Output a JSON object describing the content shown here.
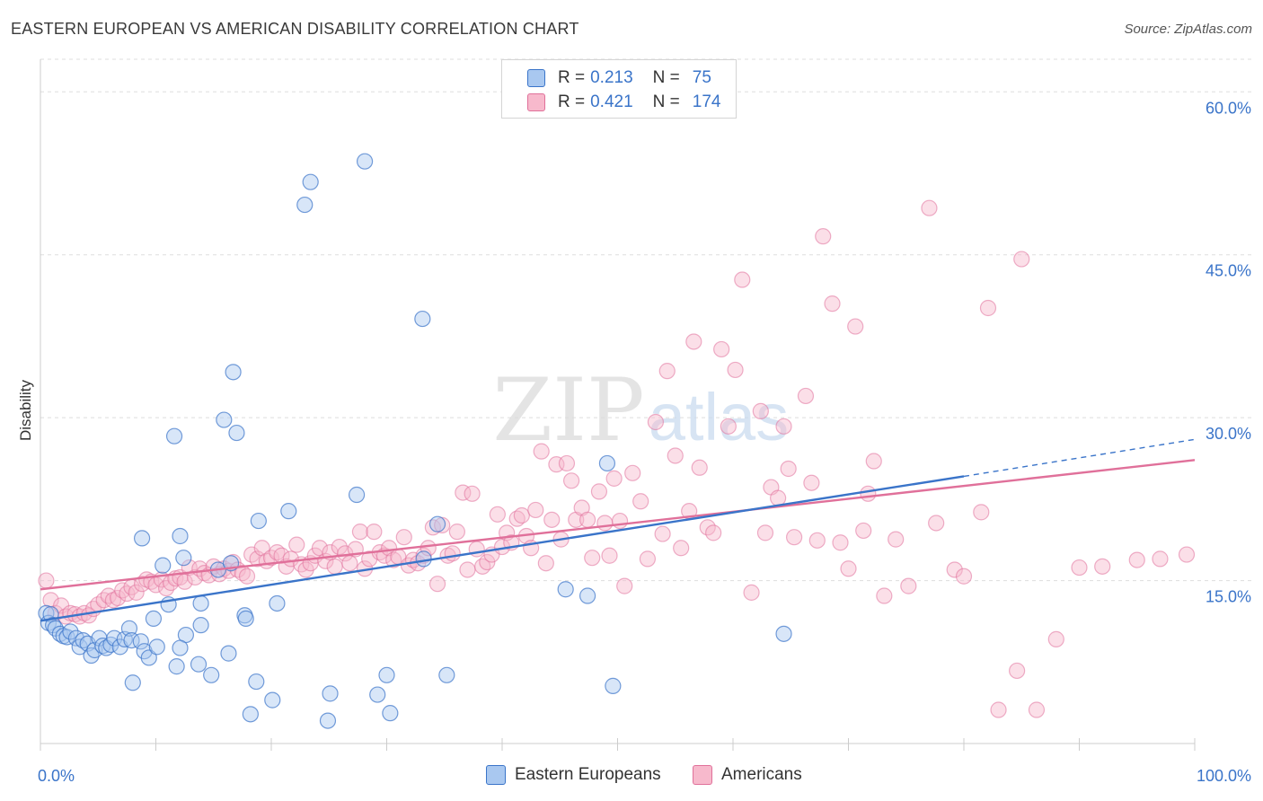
{
  "title": "EASTERN EUROPEAN VS AMERICAN DISABILITY CORRELATION CHART",
  "source": "Source: ZipAtlas.com",
  "watermark": {
    "zip": "ZIP",
    "atlas": "atlas"
  },
  "legend": {
    "r_label": "R =",
    "n_label": "N =",
    "rows": [
      {
        "r": "0.213",
        "n": "75"
      },
      {
        "r": "0.421",
        "n": "174"
      }
    ]
  },
  "bottom_legend": [
    "Eastern Europeans",
    "Americans"
  ],
  "colors": {
    "blue": "#3a74c9",
    "blue_fill": "#a9c8f0",
    "pink": "#e0709a",
    "pink_fill": "#f7b9cc",
    "grid": "#dddddd",
    "axis_label": "#3a74c9"
  },
  "chart_data": {
    "type": "scatter",
    "title": "EASTERN EUROPEAN VS AMERICAN DISABILITY CORRELATION CHART",
    "xlabel": "",
    "ylabel": "Disability",
    "xlim": [
      0,
      100
    ],
    "ylim": [
      0,
      63
    ],
    "x_tick_labels": [
      "0.0%",
      "100.0%"
    ],
    "y_ticks": [
      15,
      30,
      45,
      60
    ],
    "y_tick_labels": [
      "15.0%",
      "30.0%",
      "45.0%",
      "60.0%"
    ],
    "grid": "horizontal dashed",
    "legend_position": "top-center",
    "series": [
      {
        "name": "Eastern Europeans",
        "r": 0.213,
        "n": 75,
        "trend": {
          "x0": 0,
          "y0": 11.3,
          "x1": 80,
          "y1": 24.6,
          "dashed_to_x": 100,
          "dashed_to_y": 28.0
        },
        "points": [
          [
            0.5,
            12
          ],
          [
            0.7,
            11.1
          ],
          [
            0.9,
            11.9
          ],
          [
            1.1,
            10.9
          ],
          [
            1.3,
            10.6
          ],
          [
            1.7,
            10.1
          ],
          [
            2.0,
            9.9
          ],
          [
            2.3,
            9.8
          ],
          [
            2.6,
            10.3
          ],
          [
            3.1,
            9.7
          ],
          [
            3.4,
            8.9
          ],
          [
            3.7,
            9.5
          ],
          [
            4.1,
            9.2
          ],
          [
            4.4,
            8.1
          ],
          [
            4.7,
            8.6
          ],
          [
            5.1,
            9.7
          ],
          [
            5.4,
            9.0
          ],
          [
            5.7,
            8.8
          ],
          [
            6.1,
            9.1
          ],
          [
            6.4,
            9.7
          ],
          [
            6.9,
            8.9
          ],
          [
            7.3,
            9.6
          ],
          [
            7.7,
            10.6
          ],
          [
            7.9,
            9.5
          ],
          [
            8.0,
            5.6
          ],
          [
            8.7,
            9.4
          ],
          [
            9.0,
            8.5
          ],
          [
            9.4,
            7.9
          ],
          [
            9.8,
            11.5
          ],
          [
            10.1,
            8.9
          ],
          [
            8.8,
            18.9
          ],
          [
            10.6,
            16.4
          ],
          [
            11.1,
            12.8
          ],
          [
            11.8,
            7.1
          ],
          [
            12.1,
            19.1
          ],
          [
            12.4,
            17.1
          ],
          [
            12.6,
            10.0
          ],
          [
            13.7,
            7.3
          ],
          [
            13.9,
            12.9
          ],
          [
            14.8,
            6.3
          ],
          [
            15.4,
            16.0
          ],
          [
            16.3,
            8.3
          ],
          [
            16.5,
            16.6
          ],
          [
            16.7,
            34.2
          ],
          [
            17.0,
            28.6
          ],
          [
            17.7,
            11.8
          ],
          [
            17.8,
            11.5
          ],
          [
            18.2,
            2.7
          ],
          [
            18.7,
            5.7
          ],
          [
            18.9,
            20.5
          ],
          [
            20.1,
            4.0
          ],
          [
            20.5,
            12.9
          ],
          [
            21.5,
            21.4
          ],
          [
            22.9,
            49.6
          ],
          [
            23.4,
            51.7
          ],
          [
            24.9,
            2.1
          ],
          [
            25.1,
            4.6
          ],
          [
            27.4,
            22.9
          ],
          [
            28.1,
            53.6
          ],
          [
            29.2,
            4.5
          ],
          [
            30.0,
            6.3
          ],
          [
            30.3,
            2.8
          ],
          [
            33.1,
            39.1
          ],
          [
            33.2,
            17.0
          ],
          [
            34.4,
            20.2
          ],
          [
            35.2,
            6.3
          ],
          [
            15.9,
            29.8
          ],
          [
            11.6,
            28.3
          ],
          [
            45.5,
            14.2
          ],
          [
            47.4,
            13.6
          ],
          [
            49.6,
            5.3
          ],
          [
            49.1,
            25.8
          ],
          [
            64.4,
            10.1
          ],
          [
            13.9,
            10.9
          ],
          [
            12.1,
            8.8
          ]
        ]
      },
      {
        "name": "Americans",
        "r": 0.421,
        "n": 174,
        "trend": {
          "x0": 0,
          "y0": 14.2,
          "x1": 100,
          "y1": 26.1
        },
        "points": [
          [
            0.5,
            15.0
          ],
          [
            0.9,
            13.2
          ],
          [
            1.3,
            12.0
          ],
          [
            1.8,
            12.7
          ],
          [
            2.2,
            11.7
          ],
          [
            2.6,
            12.0
          ],
          [
            3.0,
            11.9
          ],
          [
            3.4,
            11.7
          ],
          [
            3.8,
            12.0
          ],
          [
            4.2,
            11.8
          ],
          [
            4.6,
            12.4
          ],
          [
            5.0,
            12.8
          ],
          [
            5.5,
            13.2
          ],
          [
            5.9,
            13.6
          ],
          [
            6.3,
            13.2
          ],
          [
            6.7,
            13.4
          ],
          [
            7.1,
            14.1
          ],
          [
            7.5,
            13.8
          ],
          [
            7.9,
            14.4
          ],
          [
            8.3,
            13.9
          ],
          [
            8.8,
            14.7
          ],
          [
            9.2,
            15.1
          ],
          [
            9.6,
            14.9
          ],
          [
            10.0,
            14.6
          ],
          [
            10.5,
            15.1
          ],
          [
            10.9,
            14.3
          ],
          [
            11.3,
            14.8
          ],
          [
            11.7,
            15.2
          ],
          [
            12.1,
            15.3
          ],
          [
            12.5,
            14.9
          ],
          [
            12.9,
            16.2
          ],
          [
            13.4,
            15.3
          ],
          [
            13.8,
            16.1
          ],
          [
            14.2,
            15.7
          ],
          [
            14.6,
            15.5
          ],
          [
            15.0,
            16.3
          ],
          [
            15.5,
            15.6
          ],
          [
            15.9,
            16.1
          ],
          [
            16.3,
            15.9
          ],
          [
            16.7,
            16.7
          ],
          [
            17.1,
            16.0
          ],
          [
            17.5,
            15.7
          ],
          [
            17.9,
            15.4
          ],
          [
            18.3,
            17.4
          ],
          [
            18.8,
            17.0
          ],
          [
            19.2,
            18.0
          ],
          [
            19.6,
            16.8
          ],
          [
            20.0,
            17.1
          ],
          [
            20.5,
            17.6
          ],
          [
            20.9,
            17.3
          ],
          [
            21.3,
            16.3
          ],
          [
            21.7,
            17.0
          ],
          [
            22.2,
            18.3
          ],
          [
            22.6,
            16.5
          ],
          [
            23.0,
            16.0
          ],
          [
            23.4,
            16.6
          ],
          [
            23.8,
            17.3
          ],
          [
            24.2,
            18.0
          ],
          [
            24.7,
            16.8
          ],
          [
            25.1,
            17.6
          ],
          [
            25.5,
            16.3
          ],
          [
            25.9,
            18.1
          ],
          [
            26.4,
            17.5
          ],
          [
            26.8,
            16.6
          ],
          [
            27.3,
            17.9
          ],
          [
            27.7,
            19.5
          ],
          [
            28.1,
            16.1
          ],
          [
            28.5,
            17.0
          ],
          [
            28.9,
            19.5
          ],
          [
            29.4,
            17.6
          ],
          [
            29.8,
            17.3
          ],
          [
            30.2,
            18.0
          ],
          [
            30.6,
            16.9
          ],
          [
            31.0,
            17.2
          ],
          [
            31.5,
            19.0
          ],
          [
            31.9,
            16.4
          ],
          [
            32.3,
            16.9
          ],
          [
            32.7,
            16.6
          ],
          [
            33.2,
            17.3
          ],
          [
            33.6,
            18.0
          ],
          [
            34.0,
            19.9
          ],
          [
            34.4,
            14.7
          ],
          [
            34.8,
            20.1
          ],
          [
            35.3,
            17.3
          ],
          [
            35.7,
            17.5
          ],
          [
            36.1,
            19.5
          ],
          [
            36.6,
            23.1
          ],
          [
            37.0,
            16.0
          ],
          [
            37.4,
            23.0
          ],
          [
            37.8,
            17.9
          ],
          [
            38.3,
            16.3
          ],
          [
            38.7,
            16.7
          ],
          [
            39.1,
            17.4
          ],
          [
            39.6,
            21.1
          ],
          [
            40.0,
            18.1
          ],
          [
            40.4,
            19.4
          ],
          [
            40.8,
            18.5
          ],
          [
            41.3,
            20.7
          ],
          [
            41.7,
            21.0
          ],
          [
            42.1,
            19.1
          ],
          [
            42.5,
            18.0
          ],
          [
            42.9,
            21.5
          ],
          [
            43.4,
            26.9
          ],
          [
            43.8,
            16.6
          ],
          [
            44.3,
            20.6
          ],
          [
            44.7,
            25.7
          ],
          [
            45.1,
            18.8
          ],
          [
            45.6,
            25.8
          ],
          [
            46.0,
            24.2
          ],
          [
            46.4,
            20.6
          ],
          [
            46.9,
            21.7
          ],
          [
            47.4,
            20.6
          ],
          [
            47.8,
            17.1
          ],
          [
            48.4,
            23.2
          ],
          [
            48.9,
            20.3
          ],
          [
            49.3,
            17.3
          ],
          [
            49.7,
            24.4
          ],
          [
            50.2,
            20.5
          ],
          [
            50.6,
            14.5
          ],
          [
            51.3,
            24.9
          ],
          [
            52.0,
            22.3
          ],
          [
            52.6,
            17.0
          ],
          [
            53.3,
            29.6
          ],
          [
            53.9,
            19.3
          ],
          [
            54.3,
            34.3
          ],
          [
            55.0,
            26.5
          ],
          [
            55.5,
            18.0
          ],
          [
            56.2,
            21.4
          ],
          [
            56.6,
            37.0
          ],
          [
            57.1,
            25.4
          ],
          [
            57.8,
            19.9
          ],
          [
            58.3,
            19.4
          ],
          [
            59.0,
            36.3
          ],
          [
            59.6,
            29.2
          ],
          [
            60.2,
            34.4
          ],
          [
            60.8,
            42.7
          ],
          [
            61.6,
            13.9
          ],
          [
            62.4,
            30.6
          ],
          [
            62.8,
            19.4
          ],
          [
            63.3,
            23.6
          ],
          [
            63.9,
            22.6
          ],
          [
            64.4,
            29.2
          ],
          [
            64.8,
            25.3
          ],
          [
            65.3,
            19.0
          ],
          [
            66.3,
            32.0
          ],
          [
            66.8,
            24.0
          ],
          [
            67.3,
            18.7
          ],
          [
            67.8,
            46.7
          ],
          [
            68.6,
            40.5
          ],
          [
            69.3,
            18.5
          ],
          [
            70.0,
            16.1
          ],
          [
            70.6,
            38.4
          ],
          [
            71.3,
            19.6
          ],
          [
            71.7,
            23.0
          ],
          [
            72.2,
            26.0
          ],
          [
            73.1,
            13.6
          ],
          [
            74.1,
            18.8
          ],
          [
            75.2,
            14.5
          ],
          [
            77.0,
            49.3
          ],
          [
            77.6,
            20.3
          ],
          [
            79.2,
            16.0
          ],
          [
            80.0,
            15.4
          ],
          [
            81.5,
            21.3
          ],
          [
            82.1,
            40.1
          ],
          [
            83.0,
            3.1
          ],
          [
            84.6,
            6.7
          ],
          [
            85.0,
            44.6
          ],
          [
            86.3,
            3.1
          ],
          [
            88.0,
            9.6
          ],
          [
            90.0,
            16.2
          ],
          [
            92.0,
            16.3
          ],
          [
            95.0,
            16.9
          ],
          [
            97.0,
            17.0
          ],
          [
            99.3,
            17.4
          ]
        ]
      }
    ]
  }
}
